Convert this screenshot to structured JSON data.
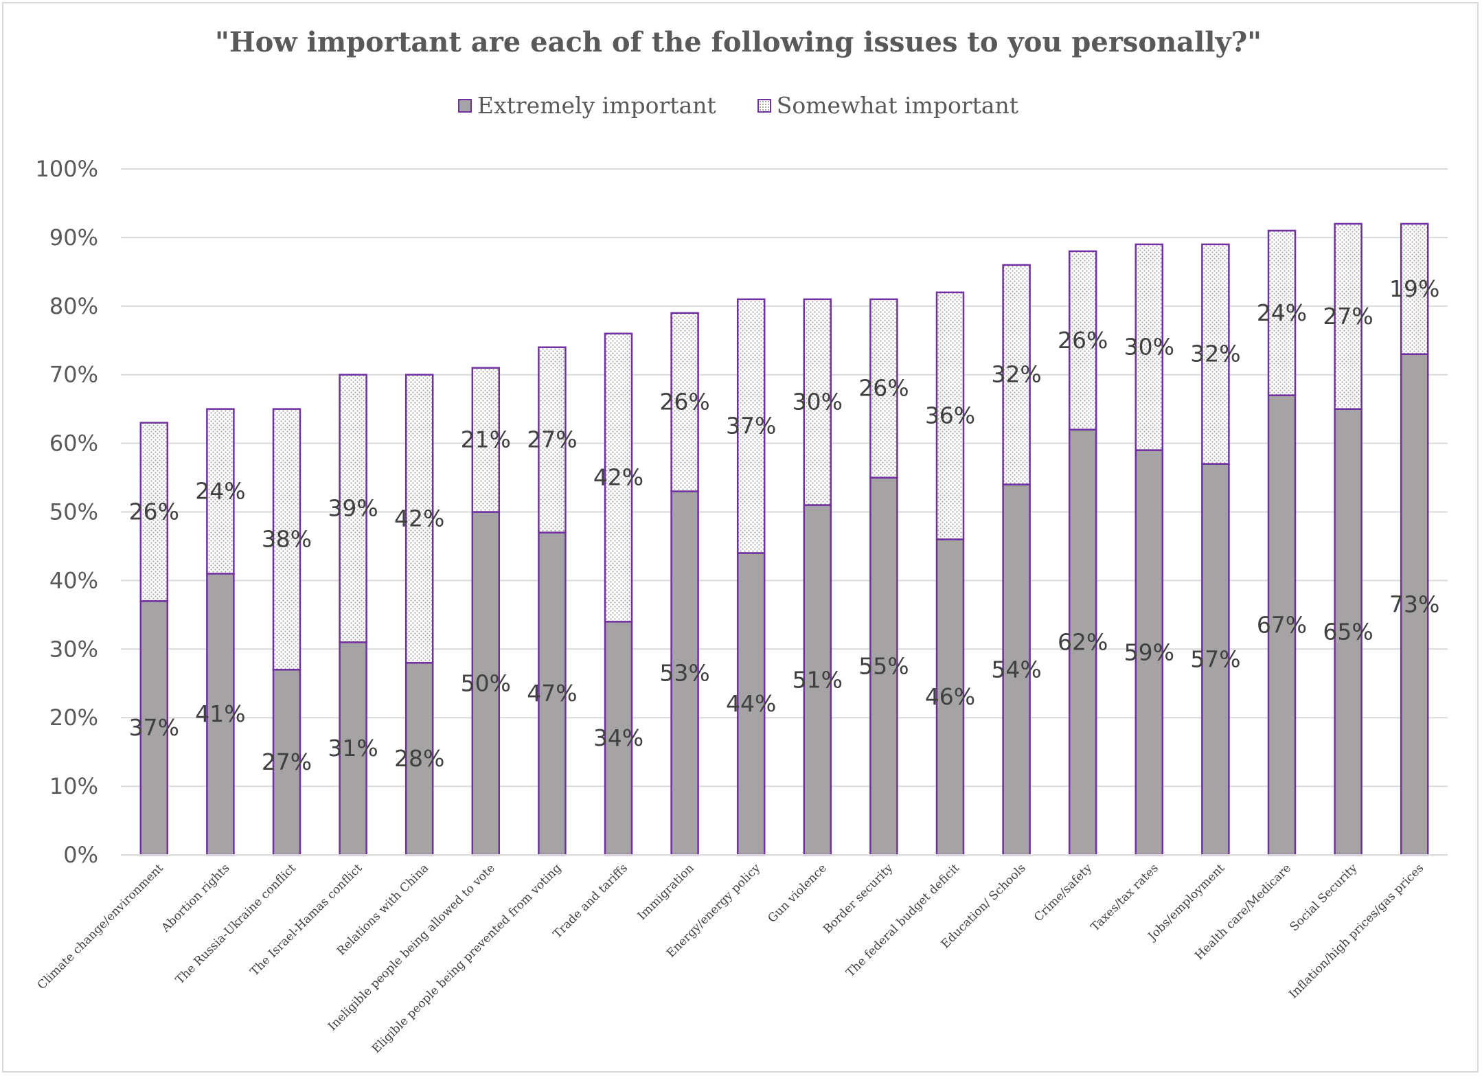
{
  "chart_data": {
    "type": "bar",
    "stacked": true,
    "title": "\"How important are each of the following issues to you personally?\"",
    "xlabel": "",
    "ylabel": "",
    "ylim": [
      0,
      100
    ],
    "yticks": [
      "0%",
      "10%",
      "20%",
      "30%",
      "40%",
      "50%",
      "60%",
      "70%",
      "80%",
      "90%",
      "100%"
    ],
    "grid": true,
    "legend_position": "top-center",
    "categories": [
      "Climate change/environment",
      "Abortion rights",
      "The Russia-Ukraine conflict",
      "The Israel-Hamas conflict",
      "Relations with China",
      "Ineligible people being allowed to vote",
      "Eligible people being prevented from voting",
      "Trade and tariffs",
      "Immigration",
      "Energy/energy policy",
      "Gun violence",
      "Border security",
      "The federal budget deficit",
      "Education/ Schools",
      "Crime/safety",
      "Taxes/tax rates",
      "Jobs/employment",
      "Health care/Medicare",
      "Social Security",
      "Inflation/high prices/gas prices"
    ],
    "series": [
      {
        "name": "Extremely important",
        "color": "#a6a3a5",
        "values": [
          37,
          41,
          27,
          31,
          28,
          50,
          47,
          34,
          53,
          44,
          51,
          55,
          46,
          54,
          62,
          59,
          57,
          67,
          65,
          73
        ],
        "labels": [
          "37%",
          "41%",
          "27%",
          "31%",
          "28%",
          "50%",
          "47%",
          "34%",
          "53%",
          "44%",
          "51%",
          "55%",
          "46%",
          "54%",
          "62%",
          "59%",
          "57%",
          "67%",
          "65%",
          "73%"
        ]
      },
      {
        "name": "Somewhat important",
        "color": "#ffffff",
        "values": [
          26,
          24,
          38,
          39,
          42,
          21,
          27,
          42,
          26,
          37,
          30,
          26,
          36,
          32,
          26,
          30,
          32,
          24,
          27,
          19
        ],
        "labels": [
          "26%",
          "24%",
          "38%",
          "39%",
          "42%",
          "21%",
          "27%",
          "42%",
          "26%",
          "37%",
          "30%",
          "26%",
          "36%",
          "32%",
          "26%",
          "30%",
          "32%",
          "24%",
          "27%",
          "19%"
        ]
      }
    ],
    "outline_color": "#7030a0",
    "gridline_color": "#d9d9d9"
  }
}
